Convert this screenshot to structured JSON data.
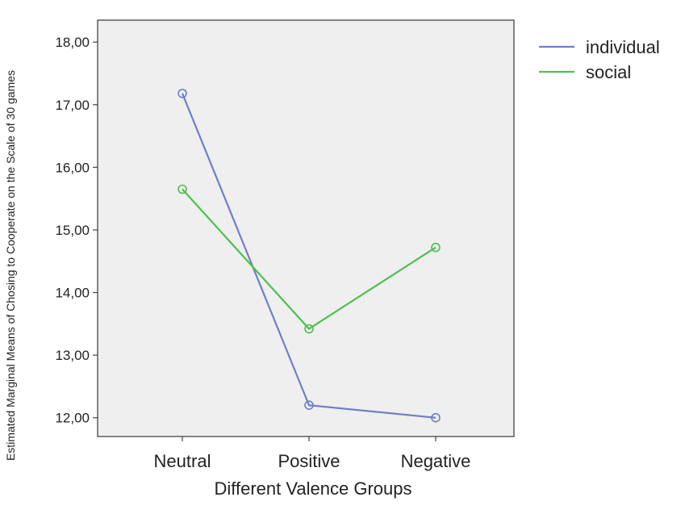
{
  "chart_data": {
    "type": "line",
    "title": "",
    "xlabel": "Different Valence Groups",
    "ylabel": "Estimated Marginal Means of Chosing to Cooperate on the Scale of 30 games",
    "categories": [
      "Neutral",
      "Positive",
      "Negative"
    ],
    "series": [
      {
        "name": "individual",
        "color": "#6f7fc6",
        "values": [
          17.18,
          12.2,
          12.0
        ]
      },
      {
        "name": "social",
        "color": "#4fbf4f",
        "values": [
          15.65,
          13.42,
          14.72
        ]
      }
    ],
    "ylim": [
      11.7,
      18.35
    ],
    "yticks": [
      12,
      13,
      14,
      15,
      16,
      17,
      18
    ],
    "ytick_labels": [
      "12,00",
      "13,00",
      "14,00",
      "15,00",
      "16,00",
      "17,00",
      "18,00"
    ],
    "plot_background": "#efefef",
    "grid": false,
    "legend_position": "top-right",
    "marker": "open-circle"
  }
}
